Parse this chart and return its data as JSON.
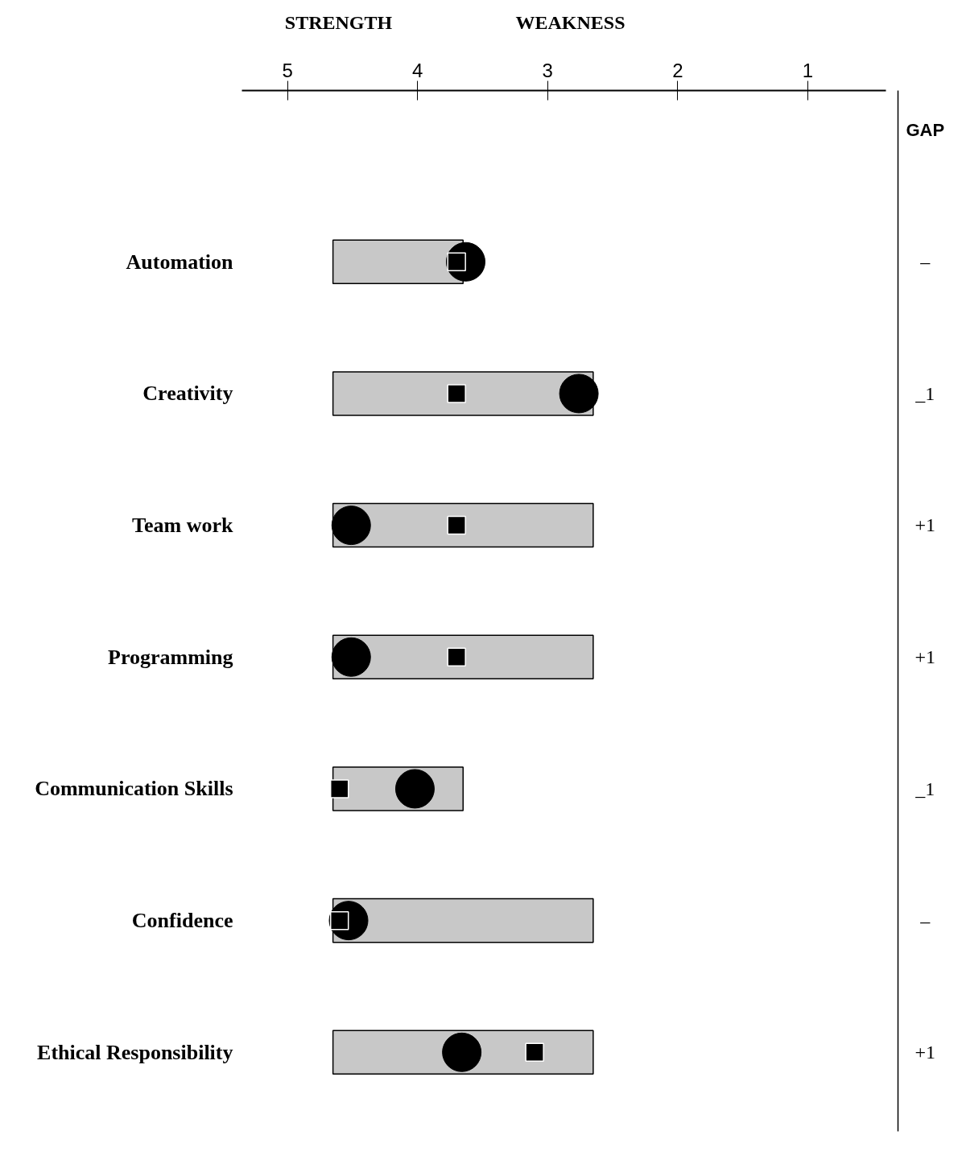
{
  "chart_data": {
    "type": "bar",
    "orientation": "horizontal",
    "categories": [
      "Automation",
      "Creativity",
      "Team work",
      "Programming",
      "Communication Skills",
      "Confidence",
      "Ethical Responsibility"
    ],
    "y2_categories": [
      "–",
      "_1",
      "+1",
      "+1",
      "_1",
      "–",
      "+1"
    ],
    "y2label": "GAP",
    "xlim": [
      5.35,
      0.4
    ],
    "xticks": [
      5,
      4,
      3,
      2,
      1
    ],
    "grid": false,
    "series": [
      {
        "type": "bar",
        "color": "#c8c8c8",
        "base": [
          3.65,
          2.65,
          2.65,
          2.65,
          3.65,
          2.65,
          2.65
        ],
        "values": [
          1.0,
          2.0,
          2.0,
          2.0,
          1.0,
          2.0,
          2.0
        ]
      },
      {
        "type": "scatter",
        "marker": "square",
        "color": "#000000",
        "values": [
          3.7,
          3.7,
          3.7,
          3.7,
          4.6,
          4.6,
          3.1
        ]
      },
      {
        "type": "scatter",
        "marker": "circle",
        "color": "#000000",
        "values": [
          3.63,
          2.76,
          4.51,
          4.51,
          4.02,
          4.53,
          3.66
        ]
      }
    ],
    "annotations": [
      "STRENGTH",
      "WEAKNESS"
    ]
  }
}
